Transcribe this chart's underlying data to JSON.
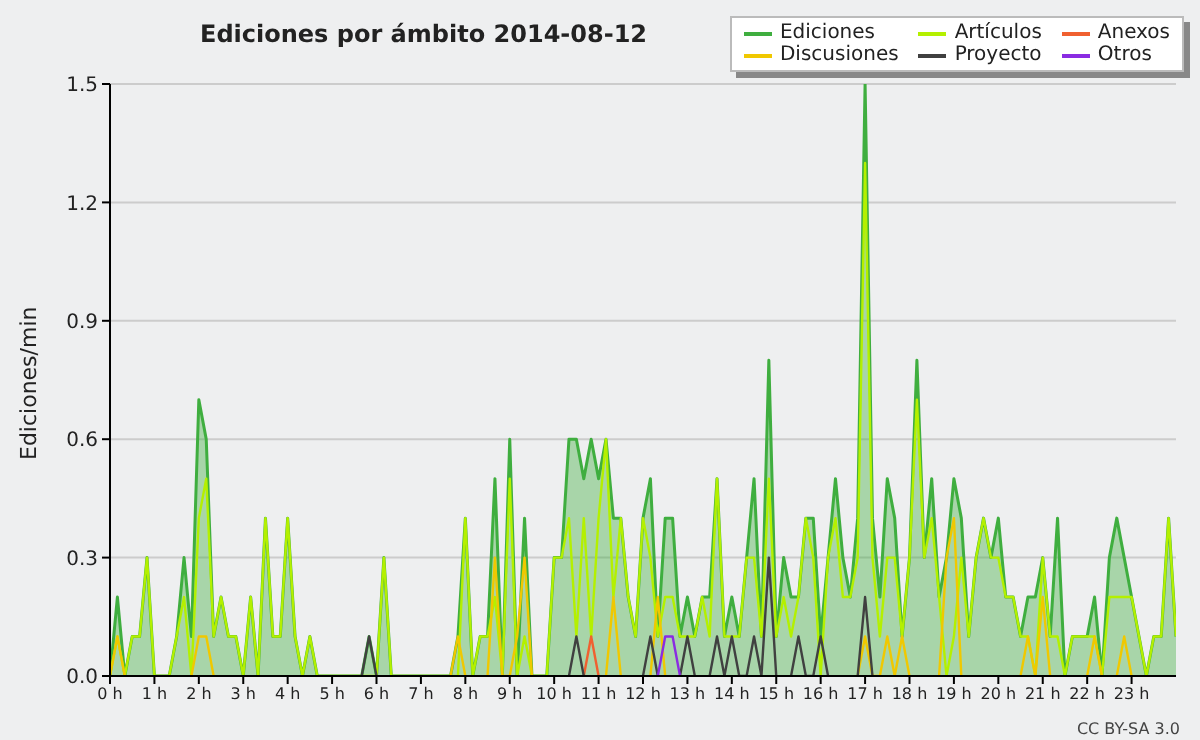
{
  "chart_data": {
    "type": "line",
    "title": "Ediciones por ámbito  2014-08-12",
    "ylabel": "Ediciones/min",
    "annotations": [
      "CC BY-SA 3.0"
    ],
    "x": [
      0,
      0.1667,
      0.3333,
      0.5,
      0.6667,
      0.8333,
      1,
      1.1667,
      1.3333,
      1.5,
      1.6667,
      1.8333,
      2,
      2.1667,
      2.3333,
      2.5,
      2.6667,
      2.8333,
      3,
      3.1667,
      3.3333,
      3.5,
      3.6667,
      3.8333,
      4,
      4.1667,
      4.3333,
      4.5,
      4.6667,
      4.8333,
      5,
      5.1667,
      5.3333,
      5.5,
      5.6667,
      5.8333,
      6,
      6.1667,
      6.3333,
      6.5,
      6.6667,
      6.8333,
      7,
      7.1667,
      7.3333,
      7.5,
      7.6667,
      7.8333,
      8,
      8.1667,
      8.3333,
      8.5,
      8.6667,
      8.8333,
      9,
      9.1667,
      9.3333,
      9.5,
      9.6667,
      9.8333,
      10,
      10.1667,
      10.3333,
      10.5,
      10.6667,
      10.8333,
      11,
      11.1667,
      11.3333,
      11.5,
      11.6667,
      11.8333,
      12,
      12.1667,
      12.3333,
      12.5,
      12.6667,
      12.8333,
      13,
      13.1667,
      13.3333,
      13.5,
      13.6667,
      13.8333,
      14,
      14.1667,
      14.3333,
      14.5,
      14.6667,
      14.8333,
      15,
      15.1667,
      15.3333,
      15.5,
      15.6667,
      15.8333,
      16,
      16.1667,
      16.3333,
      16.5,
      16.6667,
      16.8333,
      17,
      17.1667,
      17.3333,
      17.5,
      17.6667,
      17.8333,
      18,
      18.1667,
      18.3333,
      18.5,
      18.6667,
      18.8333,
      19,
      19.1667,
      19.3333,
      19.5,
      19.6667,
      19.8333,
      20,
      20.1667,
      20.3333,
      20.5,
      20.6667,
      20.8333,
      21,
      21.1667,
      21.3333,
      21.5,
      21.6667,
      21.8333,
      22,
      22.1667,
      22.3333,
      22.5,
      22.6667,
      22.8333,
      23,
      23.1667,
      23.3333,
      23.5,
      23.6667,
      23.8333,
      24
    ],
    "xlim": [
      0,
      24
    ],
    "xticks": [
      {
        "value": 0,
        "label": "0 h"
      },
      {
        "value": 1,
        "label": "1 h"
      },
      {
        "value": 2,
        "label": "2 h"
      },
      {
        "value": 3,
        "label": "3 h"
      },
      {
        "value": 4,
        "label": "4 h"
      },
      {
        "value": 5,
        "label": "5 h"
      },
      {
        "value": 6,
        "label": "6 h"
      },
      {
        "value": 7,
        "label": "7 h"
      },
      {
        "value": 8,
        "label": "8 h"
      },
      {
        "value": 9,
        "label": "9 h"
      },
      {
        "value": 10,
        "label": "10 h"
      },
      {
        "value": 11,
        "label": "11 h"
      },
      {
        "value": 12,
        "label": "12 h"
      },
      {
        "value": 13,
        "label": "13 h"
      },
      {
        "value": 14,
        "label": "14 h"
      },
      {
        "value": 15,
        "label": "15 h"
      },
      {
        "value": 16,
        "label": "16 h"
      },
      {
        "value": 17,
        "label": "17 h"
      },
      {
        "value": 18,
        "label": "18 h"
      },
      {
        "value": 19,
        "label": "19 h"
      },
      {
        "value": 20,
        "label": "20 h"
      },
      {
        "value": 21,
        "label": "21 h"
      },
      {
        "value": 22,
        "label": "22 h"
      },
      {
        "value": 23,
        "label": "23 h"
      }
    ],
    "ylim": [
      0,
      1.5
    ],
    "yticks": [
      {
        "value": 0,
        "label": "0.0"
      },
      {
        "value": 0.3,
        "label": "0.3"
      },
      {
        "value": 0.6,
        "label": "0.6"
      },
      {
        "value": 0.9,
        "label": "0.9"
      },
      {
        "value": 1.2,
        "label": "1.2"
      },
      {
        "value": 1.5,
        "label": "1.5"
      }
    ],
    "grid": "y",
    "legend": "top right",
    "series": [
      {
        "name": "Ediciones",
        "type": "area",
        "color": "#3fae3f",
        "values": [
          0,
          0.2,
          0,
          0.1,
          0.1,
          0.3,
          0,
          0,
          0,
          0.1,
          0.3,
          0.1,
          0.7,
          0.6,
          0.1,
          0.2,
          0.1,
          0.1,
          0,
          0.2,
          0,
          0.4,
          0.1,
          0.1,
          0.4,
          0.1,
          0,
          0.1,
          0,
          0,
          0,
          0,
          0,
          0,
          0,
          0.1,
          0,
          0.3,
          0,
          0,
          0,
          0,
          0,
          0,
          0,
          0,
          0,
          0.1,
          0.4,
          0,
          0.1,
          0.1,
          0.5,
          0,
          0.6,
          0,
          0.4,
          0,
          0,
          0,
          0.3,
          0.3,
          0.6,
          0.6,
          0.5,
          0.6,
          0.5,
          0.6,
          0.4,
          0.4,
          0.2,
          0.1,
          0.4,
          0.5,
          0.1,
          0.4,
          0.4,
          0.1,
          0.2,
          0.1,
          0.2,
          0.2,
          0.5,
          0.1,
          0.2,
          0.1,
          0.3,
          0.5,
          0.1,
          0.8,
          0.1,
          0.3,
          0.2,
          0.2,
          0.4,
          0.4,
          0.1,
          0.3,
          0.5,
          0.3,
          0.2,
          0.4,
          1.5,
          0.4,
          0.2,
          0.5,
          0.4,
          0.1,
          0.3,
          0.8,
          0.3,
          0.5,
          0.2,
          0.3,
          0.5,
          0.4,
          0.1,
          0.3,
          0.4,
          0.3,
          0.4,
          0.2,
          0.2,
          0.1,
          0.2,
          0.2,
          0.3,
          0.1,
          0.4,
          0,
          0.1,
          0.1,
          0.1,
          0.2,
          0,
          0.3,
          0.4,
          0.3,
          0.2,
          0.1,
          0,
          0.1,
          0.1,
          0.4,
          0.1
        ]
      },
      {
        "name": "Artículos",
        "color": "#b4f000",
        "values": [
          0,
          0.1,
          0,
          0.1,
          0.1,
          0.3,
          0,
          0,
          0,
          0.1,
          0.2,
          0,
          0.4,
          0.5,
          0.1,
          0.2,
          0.1,
          0.1,
          0,
          0.2,
          0,
          0.4,
          0.1,
          0.1,
          0.4,
          0.1,
          0,
          0.1,
          0,
          0,
          0,
          0,
          0,
          0,
          0,
          0,
          0,
          0.3,
          0,
          0,
          0,
          0,
          0,
          0,
          0,
          0,
          0,
          0,
          0.4,
          0,
          0.1,
          0.1,
          0.2,
          0,
          0.5,
          0,
          0.1,
          0,
          0,
          0,
          0.3,
          0.3,
          0.4,
          0.1,
          0.4,
          0.1,
          0.4,
          0.6,
          0.2,
          0.4,
          0.2,
          0.1,
          0.4,
          0.3,
          0.1,
          0.2,
          0.2,
          0.1,
          0.1,
          0.1,
          0.2,
          0.1,
          0.5,
          0.1,
          0.1,
          0.1,
          0.3,
          0.3,
          0.1,
          0.5,
          0.1,
          0.2,
          0.1,
          0.2,
          0.4,
          0.3,
          0,
          0.3,
          0.4,
          0.2,
          0.2,
          0.3,
          1.3,
          0.3,
          0.1,
          0.3,
          0.3,
          0.1,
          0.3,
          0.7,
          0.3,
          0.4,
          0.2,
          0,
          0.1,
          0.3,
          0.1,
          0.3,
          0.4,
          0.3,
          0.3,
          0.2,
          0.2,
          0.1,
          0.1,
          0,
          0.3,
          0.1,
          0.1,
          0,
          0.1,
          0.1,
          0.1,
          0.1,
          0,
          0.2,
          0.2,
          0.2,
          0.2,
          0.1,
          0,
          0.1,
          0.1,
          0.4,
          0.1
        ]
      },
      {
        "name": "Anexos",
        "color": "#f06030",
        "values": [
          null,
          null,
          null,
          null,
          null,
          null,
          null,
          null,
          null,
          null,
          null,
          null,
          null,
          null,
          null,
          null,
          null,
          null,
          null,
          null,
          null,
          null,
          null,
          null,
          null,
          null,
          null,
          null,
          null,
          null,
          null,
          null,
          null,
          null,
          null,
          null,
          null,
          null,
          null,
          null,
          null,
          null,
          null,
          null,
          null,
          null,
          null,
          null,
          null,
          null,
          null,
          null,
          null,
          null,
          null,
          null,
          null,
          null,
          null,
          null,
          null,
          null,
          null,
          null,
          0,
          0.1,
          0,
          null,
          null,
          null,
          null,
          null,
          null,
          null,
          null,
          null,
          null,
          null,
          null,
          null,
          null,
          null,
          null,
          null,
          null,
          null,
          null,
          null,
          null,
          null,
          null,
          null,
          null,
          null,
          null,
          null,
          null,
          null,
          null,
          null,
          null,
          null,
          null,
          null,
          null,
          null,
          null,
          null,
          null,
          null,
          null,
          null,
          null,
          null,
          null,
          null,
          null,
          null,
          null,
          null,
          null,
          null,
          null,
          null,
          null,
          null,
          null,
          null,
          null,
          null,
          null,
          null,
          null,
          null,
          null,
          null,
          null,
          null,
          null,
          null,
          null,
          null,
          null,
          null,
          null
        ]
      },
      {
        "name": "Discusiones",
        "color": "#f0c800",
        "values": [
          0,
          0.1,
          0,
          null,
          null,
          null,
          null,
          null,
          null,
          null,
          null,
          0,
          0.1,
          0.1,
          0,
          null,
          null,
          null,
          null,
          null,
          null,
          null,
          null,
          null,
          null,
          null,
          null,
          null,
          null,
          null,
          null,
          null,
          null,
          null,
          null,
          null,
          null,
          null,
          null,
          null,
          null,
          null,
          null,
          null,
          null,
          null,
          0,
          0.1,
          0,
          null,
          null,
          0,
          0.3,
          0,
          0,
          0.1,
          0.3,
          0,
          null,
          null,
          null,
          null,
          null,
          null,
          null,
          null,
          null,
          0,
          0.2,
          0,
          null,
          null,
          null,
          0,
          0.2,
          0,
          null,
          null,
          null,
          null,
          null,
          null,
          null,
          null,
          null,
          null,
          null,
          null,
          null,
          null,
          null,
          null,
          null,
          null,
          null,
          null,
          null,
          null,
          null,
          null,
          null,
          0,
          0.1,
          0,
          0,
          0.1,
          0,
          0.1,
          0,
          null,
          null,
          null,
          0,
          0.3,
          0.4,
          0,
          null,
          null,
          null,
          null,
          null,
          null,
          null,
          0,
          0.1,
          0,
          0.2,
          0,
          null,
          null,
          null,
          null,
          0,
          0.1,
          0,
          null,
          0,
          0.1,
          0,
          null,
          null,
          null,
          null,
          null,
          null
        ]
      },
      {
        "name": "Proyecto",
        "color": "#404040",
        "values": [
          null,
          null,
          null,
          null,
          null,
          null,
          null,
          null,
          null,
          null,
          null,
          null,
          null,
          null,
          null,
          null,
          null,
          null,
          null,
          null,
          null,
          null,
          null,
          null,
          null,
          null,
          null,
          null,
          null,
          null,
          null,
          null,
          null,
          null,
          0,
          0.1,
          0,
          null,
          null,
          null,
          null,
          null,
          null,
          null,
          null,
          null,
          null,
          null,
          null,
          null,
          null,
          null,
          null,
          null,
          null,
          null,
          null,
          null,
          null,
          null,
          null,
          null,
          0,
          0.1,
          0,
          null,
          null,
          null,
          null,
          null,
          null,
          null,
          0,
          0.1,
          0,
          null,
          null,
          0,
          0.1,
          0,
          null,
          0,
          0.1,
          0,
          0.1,
          0,
          0,
          0.1,
          0,
          0.3,
          0,
          null,
          0,
          0.1,
          0,
          0,
          0.1,
          0,
          null,
          null,
          null,
          0,
          0.2,
          0,
          null,
          null,
          null,
          null,
          null,
          null,
          null,
          null,
          null,
          null,
          null,
          null,
          null,
          null,
          null,
          null,
          null,
          null,
          null,
          null,
          null,
          null,
          null,
          null,
          null,
          null,
          null,
          null,
          null,
          null,
          null,
          null,
          null,
          null,
          null,
          null,
          null,
          null,
          null,
          null,
          null
        ]
      },
      {
        "name": "Otros",
        "color": "#8a2be2",
        "values": [
          null,
          null,
          null,
          null,
          null,
          null,
          null,
          null,
          null,
          null,
          null,
          null,
          null,
          null,
          null,
          null,
          null,
          null,
          null,
          null,
          null,
          null,
          null,
          null,
          null,
          null,
          null,
          null,
          null,
          null,
          null,
          null,
          null,
          null,
          null,
          null,
          null,
          null,
          null,
          null,
          null,
          null,
          null,
          null,
          null,
          null,
          null,
          null,
          null,
          null,
          null,
          null,
          null,
          null,
          null,
          null,
          null,
          null,
          null,
          null,
          null,
          null,
          null,
          null,
          null,
          null,
          null,
          null,
          null,
          null,
          null,
          null,
          null,
          null,
          0,
          0.1,
          0.1,
          0,
          null,
          null,
          null,
          null,
          null,
          null,
          null,
          null,
          null,
          null,
          null,
          null,
          null,
          null,
          null,
          null,
          null,
          null,
          null,
          null,
          null,
          null,
          null,
          null,
          null,
          null,
          null,
          null,
          null,
          null,
          null,
          null,
          null,
          null,
          null,
          null,
          null,
          null,
          null,
          null,
          null,
          null,
          null,
          null,
          null,
          null,
          null,
          null,
          null,
          null,
          null,
          null,
          null,
          null,
          null,
          null,
          null,
          null,
          null,
          null,
          null,
          null,
          null,
          null,
          null,
          null,
          null
        ]
      }
    ]
  }
}
